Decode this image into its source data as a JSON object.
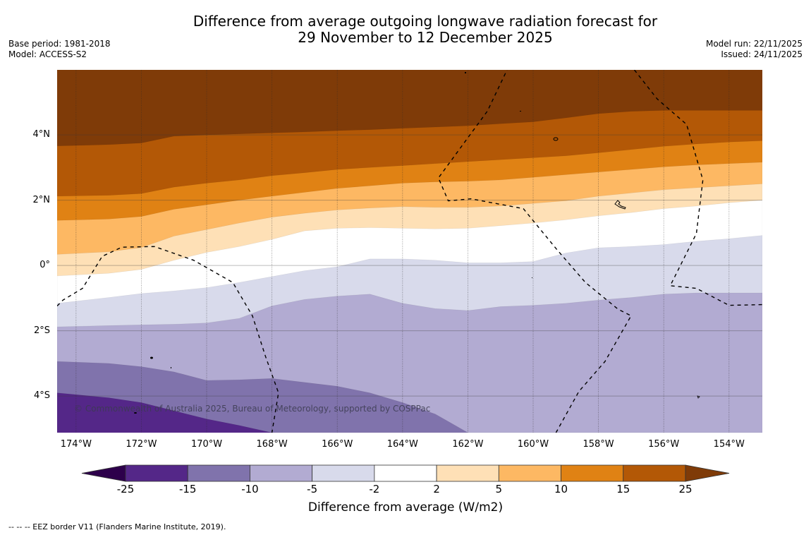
{
  "header": {
    "title_line1": "Difference from average outgoing longwave radiation forecast for",
    "title_line2": "29 November to 12 December 2025",
    "base_period": "Base period: 1981-2018",
    "model": "Model: ACCESS-S2",
    "model_run": "Model run: 22/11/2025",
    "issued": "Issued: 24/11/2025"
  },
  "map": {
    "lon_range": [
      -174.58,
      -152.98
    ],
    "lat_range": [
      -5.12,
      5.99
    ],
    "lat_ticks": [
      {
        "value": 4,
        "label": "4°N"
      },
      {
        "value": 2,
        "label": "2°N"
      },
      {
        "value": 0,
        "label": "0°"
      },
      {
        "value": -2,
        "label": "2°S"
      },
      {
        "value": -4,
        "label": "4°S"
      }
    ],
    "lon_ticks": [
      {
        "value": -174,
        "label": "174°W"
      },
      {
        "value": -172,
        "label": "172°W"
      },
      {
        "value": -170,
        "label": "170°W"
      },
      {
        "value": -168,
        "label": "168°W"
      },
      {
        "value": -166,
        "label": "166°W"
      },
      {
        "value": -164,
        "label": "164°W"
      },
      {
        "value": -162,
        "label": "162°W"
      },
      {
        "value": -160,
        "label": "160°W"
      },
      {
        "value": -158,
        "label": "158°W"
      },
      {
        "value": -156,
        "label": "156°W"
      },
      {
        "value": -154,
        "label": "154°W"
      }
    ],
    "copyright": "© Commonwealth of Australia 2025, Bureau of Meteorology, supported by COSPPac",
    "contour_lons": [
      -174.58,
      -173,
      -172,
      -171,
      -170,
      -169,
      -168,
      -167,
      -166,
      -165,
      -164,
      -163,
      -162,
      -161,
      -160,
      -159,
      -158,
      -157,
      -156,
      -155,
      -154,
      -152.98
    ],
    "contour_boundaries": [
      {
        "level": 25,
        "lats": [
          3.66,
          3.7,
          3.75,
          3.96,
          4.0,
          4.03,
          4.06,
          4.09,
          4.13,
          4.16,
          4.2,
          4.24,
          4.28,
          4.34,
          4.4,
          4.52,
          4.65,
          4.72,
          4.75,
          4.75,
          4.75,
          4.75
        ]
      },
      {
        "level": 15,
        "lats": [
          2.12,
          2.15,
          2.2,
          2.4,
          2.52,
          2.62,
          2.75,
          2.84,
          2.94,
          3.0,
          3.06,
          3.12,
          3.18,
          3.24,
          3.3,
          3.36,
          3.45,
          3.55,
          3.65,
          3.72,
          3.78,
          3.82
        ]
      },
      {
        "level": 10,
        "lats": [
          1.38,
          1.42,
          1.5,
          1.72,
          1.86,
          2.0,
          2.12,
          2.24,
          2.36,
          2.44,
          2.52,
          2.56,
          2.58,
          2.62,
          2.7,
          2.78,
          2.86,
          2.94,
          3.02,
          3.08,
          3.12,
          3.16
        ]
      },
      {
        "level": 5,
        "lats": [
          0.34,
          0.42,
          0.55,
          0.9,
          1.1,
          1.3,
          1.48,
          1.6,
          1.7,
          1.76,
          1.8,
          1.78,
          1.78,
          1.82,
          1.9,
          1.98,
          2.12,
          2.22,
          2.32,
          2.38,
          2.44,
          2.5
        ]
      },
      {
        "level": 2,
        "lats": [
          -0.32,
          -0.24,
          -0.12,
          0.16,
          0.4,
          0.58,
          0.8,
          1.06,
          1.14,
          1.16,
          1.14,
          1.12,
          1.14,
          1.22,
          1.3,
          1.4,
          1.52,
          1.62,
          1.74,
          1.82,
          1.92,
          2.0
        ]
      },
      {
        "level": -2,
        "lats": [
          -1.16,
          -0.98,
          -0.86,
          -0.78,
          -0.68,
          -0.52,
          -0.34,
          -0.16,
          -0.04,
          0.2,
          0.2,
          0.16,
          0.08,
          0.08,
          0.12,
          0.38,
          0.54,
          0.58,
          0.64,
          0.74,
          0.82,
          0.92
        ]
      },
      {
        "level": -5,
        "lats": [
          -1.88,
          -1.84,
          -1.82,
          -1.8,
          -1.76,
          -1.62,
          -1.24,
          -1.04,
          -0.94,
          -0.88,
          -1.16,
          -1.32,
          -1.38,
          -1.26,
          -1.22,
          -1.16,
          -1.06,
          -0.98,
          -0.88,
          -0.84,
          -0.84,
          -0.84
        ]
      },
      {
        "level": -10,
        "lats": [
          -2.94,
          -3.0,
          -3.1,
          -3.26,
          -3.52,
          -3.5,
          -3.46,
          -3.58,
          -3.7,
          -3.9,
          -4.2,
          -4.55,
          -5.12,
          -5.12,
          -5.12,
          -5.12,
          -5.12,
          -5.12,
          -5.12,
          -5.12,
          -5.12,
          -5.12
        ]
      },
      {
        "level": -15,
        "lats": [
          -3.9,
          -4.05,
          -4.2,
          -4.45,
          -4.7,
          -4.9,
          -5.12,
          -5.12,
          -5.12,
          -5.12,
          -5.12,
          -5.12,
          -5.12,
          -5.12,
          -5.12,
          -5.12,
          -5.12,
          -5.12,
          -5.12,
          -5.12,
          -5.12,
          -5.12
        ]
      }
    ],
    "band_order": [
      "gt25",
      "15-25",
      "10-15",
      "5-10",
      "2-5",
      "-2-2",
      "-5--2",
      "-10--5",
      "-15--10",
      "-25--15"
    ],
    "eez_borders": [
      [
        [
          -174.58,
          -1.24
        ],
        [
          -174.4,
          -1.06
        ],
        [
          -173.8,
          -0.7
        ],
        [
          -173.2,
          0.28
        ],
        [
          -172.6,
          0.56
        ],
        [
          -171.6,
          0.58
        ],
        [
          -170.4,
          0.16
        ],
        [
          -169.2,
          -0.52
        ],
        [
          -168.6,
          -1.54
        ],
        [
          -168.2,
          -2.78
        ],
        [
          -167.8,
          -3.9
        ],
        [
          -168.0,
          -5.12
        ]
      ],
      [
        [
          -159.3,
          -5.12
        ],
        [
          -158.6,
          -3.86
        ],
        [
          -157.8,
          -2.94
        ],
        [
          -157.0,
          -1.54
        ],
        [
          -157.4,
          -1.34
        ],
        [
          -158.4,
          -0.52
        ],
        [
          -159.3,
          0.52
        ],
        [
          -160.3,
          1.74
        ],
        [
          -161.9,
          2.04
        ],
        [
          -162.6,
          1.98
        ],
        [
          -162.9,
          2.68
        ],
        [
          -161.4,
          4.73
        ],
        [
          -160.8,
          5.99
        ]
      ],
      [
        [
          -156.9,
          5.99
        ],
        [
          -156.2,
          5.1
        ],
        [
          -155.3,
          4.32
        ],
        [
          -154.8,
          2.62
        ],
        [
          -155.0,
          0.98
        ],
        [
          -155.8,
          -0.62
        ],
        [
          -155.0,
          -0.7
        ],
        [
          -154.0,
          -1.22
        ],
        [
          -152.98,
          -1.2
        ]
      ]
    ]
  },
  "colorbar": {
    "colors": {
      "lt-25": "#2d004b",
      "-25--15": "#542788",
      "-15--10": "#8073ac",
      "-10--5": "#b2abd2",
      "-5--2": "#d8daeb",
      "-2-2": "#ffffff",
      "2-5": "#fee0b6",
      "5-10": "#fdb863",
      "10-15": "#e08214",
      "15-25": "#b35806",
      "gt25": "#7f3b08"
    },
    "segments": [
      "-25--15",
      "-15--10",
      "-10--5",
      "-5--2",
      "-2-2",
      "2-5",
      "5-10",
      "10-15",
      "15-25"
    ],
    "ticks": [
      "-25",
      "-15",
      "-10",
      "-5",
      "-2",
      "2",
      "5",
      "10",
      "15",
      "25"
    ],
    "label": "Difference from average (W/m2)"
  },
  "footnote": "--  --  -- EEZ border V11 (Flanders Marine Institute, 2019)."
}
